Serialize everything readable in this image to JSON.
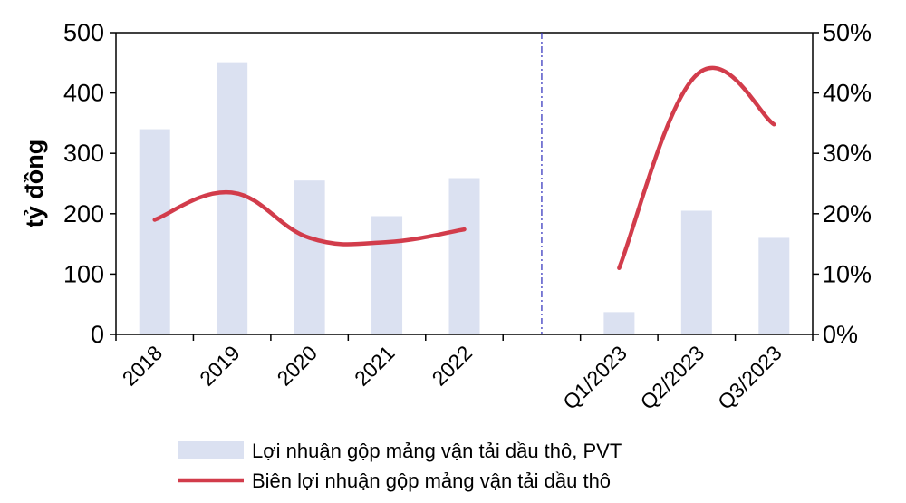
{
  "chart_data": {
    "type": "bar",
    "categories": [
      "2018",
      "2019",
      "2020",
      "2021",
      "2022",
      "",
      "Q1/2023",
      "Q2/2023",
      "Q3/2023"
    ],
    "ylabel": "tỷ đồng",
    "ylim": [
      0,
      500
    ],
    "yticks": [
      "0",
      "100",
      "200",
      "300",
      "400",
      "500"
    ],
    "y2lim": [
      0,
      0.5
    ],
    "y2ticks": [
      "0%",
      "10%",
      "20%",
      "30%",
      "40%",
      "50%"
    ],
    "grid": false,
    "legend_position": "bottom",
    "divider_after_category": "2022",
    "colors": {
      "bar": "#dbe1f1",
      "line": "#d23c4b",
      "divider": "#3b3bbf"
    },
    "series": [
      {
        "name": "Lợi nhuận gộp mảng vận tải dầu thô, PVT",
        "type": "bar",
        "axis": "left",
        "values": [
          340,
          451,
          255,
          196,
          259,
          null,
          37,
          205,
          160
        ]
      },
      {
        "name": "Biên lợi nhuận gộp mảng vận tải dầu thô",
        "type": "line",
        "axis": "right",
        "values": [
          0.19,
          0.235,
          0.16,
          0.153,
          0.174,
          null,
          0.11,
          0.43,
          0.348
        ]
      }
    ]
  }
}
